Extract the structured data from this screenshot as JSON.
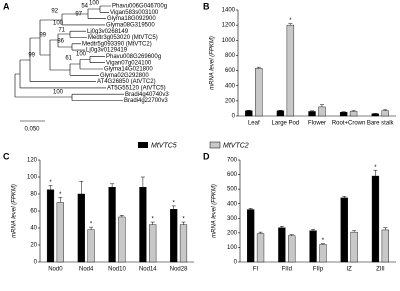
{
  "tree": {
    "panel": "A",
    "labels": [
      "Phavu006G046700g",
      "Vigan583s003100",
      "Glyma18G092900",
      "Glyma08G319500",
      "Lj0g3v0268149",
      "Medtr3g053020 (MtVTC5)",
      "Medtr5g093390 (MtVTC2)",
      "Lj0g3v0129419",
      "Phavu008G269600g",
      "Vigan07g024100",
      "Glyma14G021800",
      "Glyma02G292800",
      "AT4G26850 (AtVTC2)",
      "AT5G55120 (AtVTC5)",
      "Bradi4g40740v3",
      "Bradi4g22700v3"
    ],
    "bootstraps": [
      "100",
      "54",
      "97",
      "92",
      "100",
      "71",
      "86",
      "100",
      "61",
      "99",
      "99",
      "100"
    ],
    "scale": "0.050"
  },
  "legend": [
    "MtVTC5",
    "MtVTC2"
  ],
  "chart_data": [
    {
      "type": "bar",
      "panel": "B",
      "y_label": "mRNA level (FPKM)",
      "categories": [
        "Leaf",
        "Large Pod",
        "Flower",
        "Root+Crown",
        "Bare stalk"
      ],
      "series": [
        {
          "name": "MtVTC5",
          "color": "#000000",
          "values": [
            70,
            70,
            60,
            50,
            30
          ],
          "errors": [
            5,
            5,
            8,
            6,
            4
          ]
        },
        {
          "name": "MtVTC2",
          "color": "#c8c8c8",
          "values": [
            630,
            1200,
            120,
            60,
            70
          ],
          "errors": [
            15,
            20,
            30,
            10,
            12
          ]
        }
      ],
      "ylim": [
        0,
        1400
      ],
      "yticks": [
        0,
        200,
        400,
        600,
        800,
        1000,
        1200,
        1400
      ],
      "annotations": [
        {
          "text": "*",
          "category": "Large Pod",
          "series": "MtVTC2"
        }
      ]
    },
    {
      "type": "bar",
      "panel": "C",
      "y_label": "mRNA level (FPKM)",
      "categories": [
        "Nod0",
        "Nod4",
        "Nod10",
        "Nod14",
        "Nod28"
      ],
      "series": [
        {
          "name": "MtVTC5",
          "color": "#000000",
          "values": [
            85,
            80,
            88,
            88,
            62
          ],
          "errors": [
            5,
            15,
            4,
            12,
            4
          ]
        },
        {
          "name": "MtVTC2",
          "color": "#c8c8c8",
          "values": [
            70,
            38,
            53,
            44,
            44
          ],
          "errors": [
            6,
            3,
            2,
            3,
            3
          ]
        }
      ],
      "ylim": [
        0,
        120
      ],
      "yticks": [
        0,
        20,
        40,
        60,
        80,
        100,
        120
      ],
      "annotations": [
        {
          "text": "*",
          "category": "Nod0",
          "series": "MtVTC5"
        },
        {
          "text": "*",
          "category": "Nod0",
          "series": "MtVTC2"
        },
        {
          "text": "*",
          "category": "Nod4",
          "series": "MtVTC2"
        },
        {
          "text": "*",
          "category": "Nod14",
          "series": "MtVTC2"
        },
        {
          "text": "*",
          "category": "Nod28",
          "series": "MtVTC5"
        },
        {
          "text": "*",
          "category": "Nod28",
          "series": "MtVTC2"
        }
      ]
    },
    {
      "type": "bar",
      "panel": "D",
      "y_label": "mRNA level (FPKM)",
      "categories": [
        "FI",
        "FIId",
        "FIIp",
        "IZ",
        "ZIII"
      ],
      "series": [
        {
          "name": "MtVTC5",
          "color": "#000000",
          "values": [
            360,
            235,
            215,
            440,
            590
          ],
          "errors": [
            8,
            10,
            10,
            10,
            40
          ]
        },
        {
          "name": "MtVTC2",
          "color": "#c8c8c8",
          "values": [
            195,
            180,
            120,
            205,
            220
          ],
          "errors": [
            10,
            8,
            6,
            10,
            15
          ]
        }
      ],
      "ylim": [
        0,
        700
      ],
      "yticks": [
        0,
        100,
        200,
        300,
        400,
        500,
        600,
        700
      ],
      "annotations": [
        {
          "text": "*",
          "category": "FIIp",
          "series": "MtVTC2"
        },
        {
          "text": "*",
          "category": "ZIII",
          "series": "MtVTC5"
        }
      ]
    }
  ]
}
